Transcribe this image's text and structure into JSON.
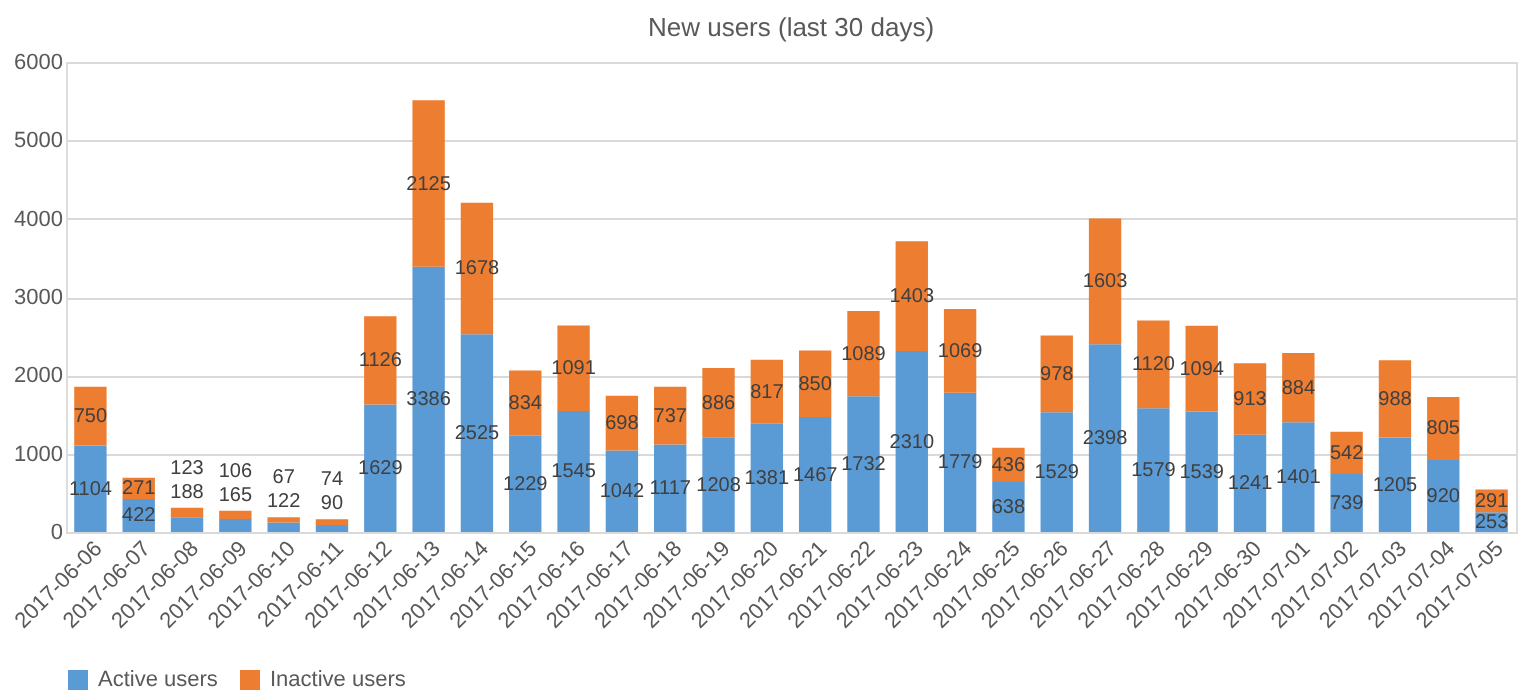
{
  "chart_data": {
    "type": "bar",
    "title": "New users (last 30 days)",
    "stacked": true,
    "data_labels": true,
    "grid": "y",
    "legend": "bottom",
    "categories": [
      "2017-06-06",
      "2017-06-07",
      "2017-06-08",
      "2017-06-09",
      "2017-06-10",
      "2017-06-11",
      "2017-06-12",
      "2017-06-13",
      "2017-06-14",
      "2017-06-15",
      "2017-06-16",
      "2017-06-17",
      "2017-06-18",
      "2017-06-19",
      "2017-06-20",
      "2017-06-21",
      "2017-06-22",
      "2017-06-23",
      "2017-06-24",
      "2017-06-25",
      "2017-06-26",
      "2017-06-27",
      "2017-06-28",
      "2017-06-29",
      "2017-06-30",
      "2017-07-01",
      "2017-07-02",
      "2017-07-03",
      "2017-07-04",
      "2017-07-05"
    ],
    "ylim": [
      0,
      6000
    ],
    "yticks": [
      0,
      1000,
      2000,
      3000,
      4000,
      5000,
      6000
    ],
    "series": [
      {
        "name": "Active users",
        "color": "#5b9bd5",
        "values": [
          1104,
          422,
          188,
          165,
          122,
          90,
          1629,
          3386,
          2525,
          1229,
          1545,
          1042,
          1117,
          1208,
          1381,
          1467,
          1732,
          2310,
          1779,
          638,
          1529,
          2398,
          1579,
          1539,
          1241,
          1401,
          739,
          1205,
          920,
          253
        ]
      },
      {
        "name": "Inactive users",
        "color": "#ed7d31",
        "values": [
          750,
          271,
          123,
          106,
          67,
          74,
          1126,
          2125,
          1678,
          834,
          1091,
          698,
          737,
          886,
          817,
          850,
          1089,
          1403,
          1069,
          436,
          978,
          1603,
          1120,
          1094,
          913,
          884,
          542,
          988,
          805,
          291
        ]
      }
    ]
  }
}
